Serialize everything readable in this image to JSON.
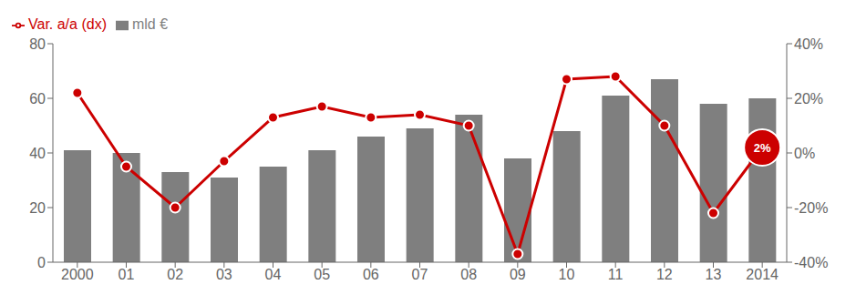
{
  "chart_data": {
    "type": "bar",
    "categories": [
      "2000",
      "01",
      "02",
      "03",
      "04",
      "05",
      "06",
      "07",
      "08",
      "09",
      "10",
      "11",
      "12",
      "13",
      "2014"
    ],
    "series": [
      {
        "name": "mld €",
        "type": "bar",
        "color": "#7f7f7f",
        "values": [
          41,
          40,
          33,
          31,
          35,
          41,
          46,
          49,
          54,
          38,
          48,
          61,
          67,
          58,
          60
        ]
      },
      {
        "name": "Var. a/a (dx)",
        "type": "line",
        "axis": "y2",
        "color": "#cc0000",
        "marker": "circle",
        "values": [
          22,
          -5,
          -20,
          -3,
          13,
          17,
          13,
          14,
          10,
          -37,
          27,
          28,
          10,
          -22,
          2
        ],
        "value_labels": [
          null,
          null,
          null,
          null,
          null,
          null,
          null,
          null,
          null,
          null,
          null,
          null,
          null,
          null,
          "2%"
        ]
      }
    ],
    "ylim": [
      0,
      80
    ],
    "yticks": [
      0,
      20,
      40,
      60,
      80
    ],
    "y2lim": [
      -40,
      40
    ],
    "y2ticks": [
      {
        "value": -40,
        "label": "-40%"
      },
      {
        "value": -20,
        "label": "-20%"
      },
      {
        "value": 0,
        "label": "0%"
      },
      {
        "value": 20,
        "label": "20%"
      },
      {
        "value": 40,
        "label": "40%"
      }
    ],
    "legend": "upper left",
    "grid": false
  }
}
